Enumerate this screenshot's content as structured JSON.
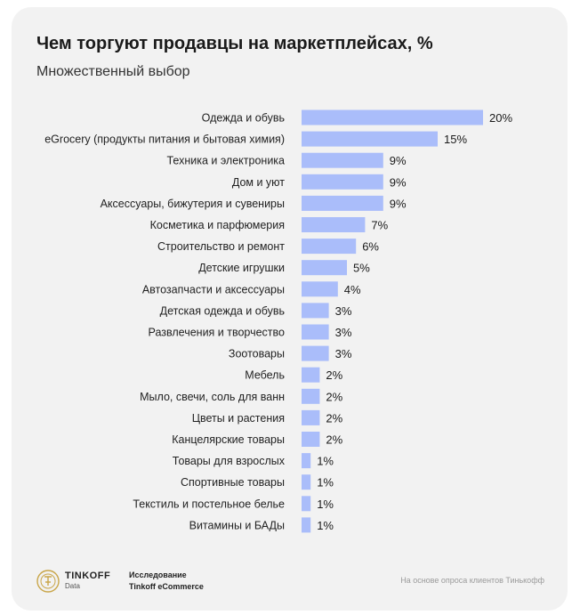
{
  "header": {
    "title": "Чем торгуют продавцы на маркетплейсах, %",
    "subtitle": "Множественный выбор"
  },
  "footer": {
    "brand": "TINKOFF",
    "brand_sub": "Data",
    "study_line1": "Исследование",
    "study_line2": "Tinkoff eCommerce",
    "source": "На основе опроса клиентов Тинькофф"
  },
  "colors": {
    "bar": "#aabdfa",
    "background": "#f2f2f2",
    "text": "#1a1a1a"
  },
  "chart_data": {
    "type": "bar",
    "orientation": "horizontal",
    "title": "Чем торгуют продавцы на маркетплейсах, %",
    "subtitle": "Множественный выбор",
    "categories": [
      "Одежда и обувь",
      "eGrocery (продукты питания и бытовая химия)",
      "Техника и электроника",
      "Дом и уют",
      "Аксессуары, бижутерия и сувениры",
      "Косметика и парфюмерия",
      "Строительство и ремонт",
      "Детские игрушки",
      "Автозапчасти и аксессуары",
      "Детская одежда и обувь",
      "Развлечения и творчество",
      "Зоотовары",
      "Мебель",
      "Мыло, свечи, соль для ванн",
      "Цветы и растения",
      "Канцелярские товары",
      "Товары для взрослых",
      "Спортивные товары",
      "Текстиль и постельное белье",
      "Витамины и БАДы"
    ],
    "values": [
      20,
      15,
      9,
      9,
      9,
      7,
      6,
      5,
      4,
      3,
      3,
      3,
      2,
      2,
      2,
      2,
      1,
      1,
      1,
      1
    ],
    "value_labels": [
      "20%",
      "15%",
      "9%",
      "9%",
      "9%",
      "7%",
      "6%",
      "5%",
      "4%",
      "3%",
      "3%",
      "3%",
      "2%",
      "2%",
      "2%",
      "2%",
      "1%",
      "1%",
      "1%",
      "1%"
    ],
    "xlim": [
      0,
      20
    ],
    "grid": false,
    "legend": "none"
  }
}
